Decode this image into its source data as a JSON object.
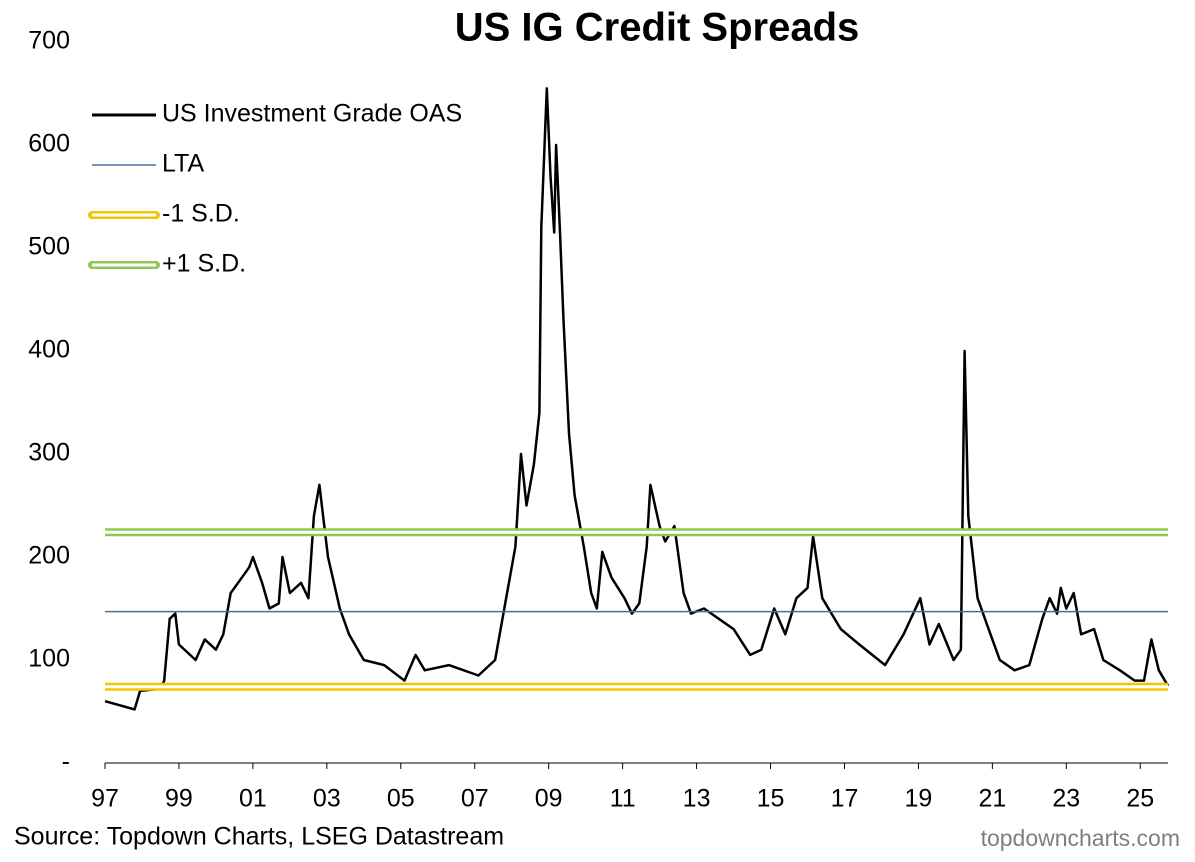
{
  "chart_data": {
    "type": "line",
    "title": "US IG Credit Spreads",
    "source": "Source: Topdown Charts, LSEG Datastream",
    "watermark": "topdowncharts.com",
    "x": [
      1997.0,
      1997.8,
      1997.95,
      1998.5,
      1998.6,
      1998.75,
      1998.9,
      1999.0,
      1999.45,
      1999.7,
      2000.0,
      2000.2,
      2000.4,
      2000.6,
      2000.9,
      2001.0,
      2001.25,
      2001.45,
      2001.7,
      2001.8,
      2002.0,
      2002.3,
      2002.5,
      2002.65,
      2002.8,
      2003.03,
      2003.35,
      2003.6,
      2004.0,
      2004.55,
      2005.1,
      2005.4,
      2005.65,
      2006.3,
      2007.1,
      2007.55,
      2007.8,
      2008.1,
      2008.25,
      2008.4,
      2008.6,
      2008.75,
      2008.8,
      2008.95,
      2009.05,
      2009.15,
      2009.2,
      2009.3,
      2009.4,
      2009.55,
      2009.7,
      2009.95,
      2010.15,
      2010.3,
      2010.45,
      2010.7,
      2011.05,
      2011.25,
      2011.45,
      2011.65,
      2011.75,
      2012.0,
      2012.15,
      2012.4,
      2012.65,
      2012.85,
      2013.2,
      2013.6,
      2014.0,
      2014.45,
      2014.75,
      2015.1,
      2015.4,
      2015.7,
      2016.0,
      2016.15,
      2016.4,
      2016.9,
      2017.4,
      2018.1,
      2018.6,
      2019.05,
      2019.3,
      2019.55,
      2019.95,
      2020.15,
      2020.25,
      2020.35,
      2020.6,
      2020.85,
      2021.2,
      2021.6,
      2022.0,
      2022.35,
      2022.55,
      2022.75,
      2022.85,
      2023.0,
      2023.2,
      2023.4,
      2023.75,
      2024.0,
      2024.45,
      2024.85,
      2025.1,
      2025.3,
      2025.5,
      2025.75
    ],
    "series": [
      {
        "name": "US Investment Grade OAS",
        "color": "#000000",
        "values": [
          60,
          52,
          70,
          72,
          80,
          140,
          145,
          115,
          100,
          120,
          110,
          125,
          165,
          175,
          190,
          200,
          175,
          150,
          155,
          200,
          165,
          175,
          160,
          240,
          270,
          200,
          150,
          125,
          100,
          95,
          80,
          105,
          90,
          95,
          85,
          100,
          150,
          210,
          300,
          250,
          290,
          340,
          520,
          655,
          570,
          515,
          600,
          520,
          430,
          320,
          260,
          210,
          165,
          150,
          205,
          180,
          160,
          145,
          155,
          210,
          270,
          230,
          215,
          230,
          165,
          145,
          150,
          140,
          130,
          105,
          110,
          150,
          125,
          160,
          170,
          220,
          160,
          130,
          115,
          95,
          125,
          160,
          115,
          135,
          100,
          110,
          400,
          240,
          160,
          135,
          100,
          90,
          95,
          140,
          160,
          145,
          170,
          150,
          165,
          125,
          130,
          100,
          90,
          80,
          80,
          120,
          90,
          75
        ]
      },
      {
        "name": "LTA",
        "color": "#44709d",
        "value": 147
      },
      {
        "name": "-1 S.D.",
        "color": "#f5c400",
        "value": 74
      },
      {
        "name": "+1 S.D.",
        "color": "#8fc850",
        "value": 224
      }
    ],
    "xlim": [
      1997,
      2025.75
    ],
    "ylim": [
      0,
      700
    ],
    "xticks": [
      {
        "value": 1997,
        "label": "97"
      },
      {
        "value": 1999,
        "label": "99"
      },
      {
        "value": 2001,
        "label": "01"
      },
      {
        "value": 2003,
        "label": "03"
      },
      {
        "value": 2005,
        "label": "05"
      },
      {
        "value": 2007,
        "label": "07"
      },
      {
        "value": 2009,
        "label": "09"
      },
      {
        "value": 2011,
        "label": "11"
      },
      {
        "value": 2013,
        "label": "13"
      },
      {
        "value": 2015,
        "label": "15"
      },
      {
        "value": 2017,
        "label": "17"
      },
      {
        "value": 2019,
        "label": "19"
      },
      {
        "value": 2021,
        "label": "21"
      },
      {
        "value": 2023,
        "label": "23"
      },
      {
        "value": 2025,
        "label": "25"
      }
    ],
    "yticks": [
      {
        "value": 0,
        "label": "-"
      },
      100,
      200,
      300,
      400,
      500,
      600,
      700
    ]
  }
}
